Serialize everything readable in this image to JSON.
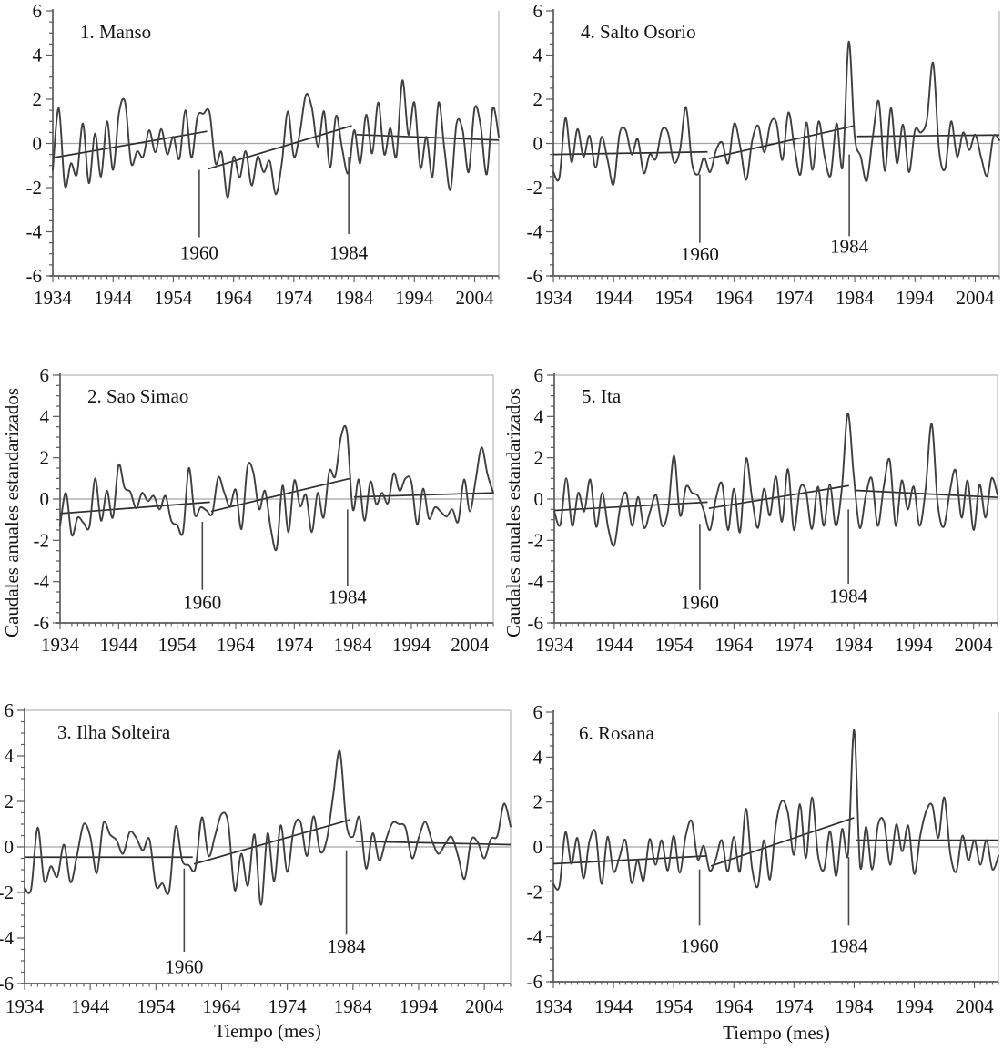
{
  "figure": {
    "xlabel": "Tiempo (mes)",
    "ylabel": "Caudales anuales estandarizados",
    "x_tick_labels": [
      "1934",
      "1944",
      "1954",
      "1964",
      "1974",
      "1984",
      "1994",
      "2004"
    ],
    "y_tick_labels": [
      "6",
      "4",
      "2",
      "0",
      "-2",
      "-4",
      "-6"
    ],
    "x_range": [
      1934,
      2008
    ],
    "y_range": [
      -6,
      6
    ],
    "x_major_step": 10,
    "x_minor_step": 1,
    "y_major_step": 2,
    "y_minor_step": 0.5,
    "colors": {
      "series": "#3f3f3f",
      "trend": "#2e2e2e",
      "marker": "#4a4a4a",
      "axis": "#595959",
      "zero_line": "#a3a3a3",
      "frame": "#c2c2c2",
      "text": "#141414",
      "background": "#ffffff"
    }
  },
  "chart_data": [
    {
      "type": "line",
      "title": "1. Manso",
      "x_start": 1934,
      "x_step": 1,
      "values": [
        -1.2,
        1.6,
        -1.9,
        -0.9,
        -1.4,
        0.9,
        -1.8,
        0.45,
        -1.5,
        1.0,
        -1.2,
        1.4,
        1.85,
        -0.9,
        -0.35,
        -0.6,
        0.6,
        -0.4,
        0.65,
        -0.5,
        0.3,
        -0.7,
        1.5,
        -0.65,
        1.2,
        1.35,
        1.4,
        -0.9,
        -0.4,
        -2.45,
        -0.6,
        -1.55,
        -0.35,
        -1.9,
        -0.6,
        -1.3,
        -0.8,
        -2.3,
        -0.9,
        1.45,
        -0.6,
        0.5,
        2.2,
        1.6,
        -0.15,
        1.45,
        -1.1,
        1.25,
        -0.2,
        -1.35,
        0.6,
        -0.9,
        1.3,
        -0.45,
        1.85,
        -0.5,
        0.7,
        -0.6,
        2.85,
        0.4,
        1.85,
        -1.1,
        0.3,
        -1.5,
        1.85,
        -0.3,
        -2.1,
        0.9,
        0.6,
        -1.3,
        1.6,
        0.8,
        -1.4,
        1.6,
        0.3
      ],
      "trend_segments": [
        {
          "x1": 1934,
          "y1": -0.65,
          "x2": 1959.6,
          "y2": 0.55
        },
        {
          "x1": 1959.8,
          "y1": -1.15,
          "x2": 1983.6,
          "y2": 0.8
        },
        {
          "x1": 1984.4,
          "y1": 0.4,
          "x2": 2008,
          "y2": 0.15
        }
      ],
      "breakpoints": [
        {
          "label": "1960",
          "x": 1958.3,
          "y_top": -1.2,
          "y_bottom": -4.25,
          "label_y": -4.95
        },
        {
          "label": "1984",
          "x": 1983.1,
          "y_top": -0.6,
          "y_bottom": -4.1,
          "label_y": -4.95
        }
      ]
    },
    {
      "type": "line",
      "title": "2. Sao Simao",
      "x_start": 1934,
      "x_step": 1,
      "values": [
        -1.3,
        0.3,
        -1.75,
        -0.9,
        -1.15,
        -1.35,
        1.0,
        -1.05,
        0.4,
        -0.9,
        1.65,
        0.55,
        0.35,
        -0.45,
        0.3,
        -0.1,
        0.15,
        -0.5,
        0.15,
        -1.05,
        -1.25,
        -1.6,
        1.5,
        -0.75,
        -0.4,
        -0.55,
        -0.7,
        1.05,
        0.35,
        -0.35,
        0.45,
        -1.45,
        1.55,
        1.3,
        -0.5,
        0.4,
        -1.45,
        -2.4,
        0.65,
        -1.6,
        0.9,
        -0.35,
        0.2,
        -1.6,
        0.3,
        -0.9,
        1.35,
        1.1,
        3.05,
        3.25,
        -0.5,
        0.95,
        -1.05,
        0.85,
        -0.25,
        0.3,
        -0.2,
        1.25,
        0.4,
        1.0,
        0.85,
        -1.25,
        0.5,
        -0.95,
        -0.4,
        -0.6,
        -0.85,
        -0.5,
        -1.1,
        0.95,
        -0.6,
        0.95,
        2.5,
        1.2,
        0.3
      ],
      "trend_segments": [
        {
          "x1": 1934,
          "y1": -0.7,
          "x2": 1959.6,
          "y2": -0.15
        },
        {
          "x1": 1959.8,
          "y1": -0.6,
          "x2": 1983.6,
          "y2": 1.0
        },
        {
          "x1": 1984.2,
          "y1": 0.1,
          "x2": 2008,
          "y2": 0.3
        }
      ],
      "breakpoints": [
        {
          "label": "1960",
          "x": 1958.3,
          "y_top": -1.1,
          "y_bottom": -4.4,
          "label_y": -5.0
        },
        {
          "label": "1984",
          "x": 1983.1,
          "y_top": -0.5,
          "y_bottom": -4.2,
          "label_y": -4.75
        }
      ]
    },
    {
      "type": "line",
      "title": "3. Ilha Solteira",
      "x_start": 1934,
      "x_step": 1,
      "values": [
        -1.8,
        -1.85,
        0.85,
        -1.5,
        -0.85,
        -1.3,
        0.1,
        -1.55,
        -0.35,
        1.0,
        0.45,
        -1.15,
        1.05,
        0.55,
        0.3,
        -0.3,
        0.65,
        0.4,
        -0.15,
        0.35,
        -1.7,
        -1.6,
        -1.95,
        0.9,
        -0.6,
        -0.8,
        -0.95,
        1.3,
        -0.4,
        0.5,
        1.45,
        1.05,
        -1.9,
        -0.3,
        -1.7,
        0.55,
        -2.55,
        0.6,
        -1.5,
        0.95,
        -1.1,
        0.85,
        1.1,
        -0.4,
        1.35,
        -0.2,
        0.3,
        2.3,
        4.2,
        1.0,
        0.45,
        1.3,
        -0.95,
        0.6,
        -0.6,
        0.3,
        1.05,
        1.0,
        0.85,
        -0.5,
        0.4,
        1.1,
        0.3,
        -0.3,
        0.1,
        0.45,
        -0.4,
        -1.4,
        0.3,
        0.2,
        -0.5,
        0.35,
        0.5,
        1.9,
        0.9
      ],
      "trend_segments": [
        {
          "x1": 1934,
          "y1": -0.45,
          "x2": 1959.6,
          "y2": -0.45
        },
        {
          "x1": 1959.8,
          "y1": -0.75,
          "x2": 1983.6,
          "y2": 1.2
        },
        {
          "x1": 1984.4,
          "y1": 0.25,
          "x2": 2008,
          "y2": 0.1
        }
      ],
      "breakpoints": [
        {
          "label": "1960",
          "x": 1958.3,
          "y_top": -0.95,
          "y_bottom": -4.6,
          "label_y": -5.25
        },
        {
          "label": "1984",
          "x": 1983.0,
          "y_top": -0.15,
          "y_bottom": -3.85,
          "label_y": -4.35
        }
      ]
    },
    {
      "type": "line",
      "title": "4. Salto Osorio",
      "x_start": 1934,
      "x_step": 1,
      "values": [
        -1.3,
        -1.55,
        1.15,
        -0.85,
        0.65,
        -0.6,
        0.35,
        -1.1,
        0.3,
        -0.75,
        -1.85,
        0.45,
        0.6,
        -0.5,
        0.2,
        -1.35,
        -0.5,
        -0.7,
        0.6,
        0.5,
        -0.85,
        -0.3,
        1.65,
        -0.9,
        -1.4,
        -0.65,
        -1.3,
        -0.3,
        0.05,
        -0.9,
        0.9,
        -0.15,
        -1.65,
        0.15,
        0.8,
        -0.4,
        0.9,
        0.95,
        -0.75,
        1.4,
        -0.2,
        -1.4,
        0.95,
        -1.2,
        1.0,
        -0.6,
        -1.45,
        0.9,
        -1.05,
        4.6,
        0.3,
        -0.6,
        -1.7,
        0.3,
        1.9,
        -1.25,
        1.6,
        -0.9,
        0.85,
        -1.3,
        0.6,
        0.5,
        1.1,
        3.65,
        -0.3,
        -1.15,
        1.0,
        -0.6,
        0.5,
        -0.3,
        0.4,
        -0.65,
        -1.45,
        0.3,
        0.15
      ],
      "trend_segments": [
        {
          "x1": 1934,
          "y1": -0.5,
          "x2": 1959.6,
          "y2": -0.38
        },
        {
          "x1": 1959.8,
          "y1": -0.68,
          "x2": 1984.0,
          "y2": 0.8
        },
        {
          "x1": 1984.4,
          "y1": 0.32,
          "x2": 2008,
          "y2": 0.38
        }
      ],
      "breakpoints": [
        {
          "label": "1960",
          "x": 1958.3,
          "y_top": -1.4,
          "y_bottom": -4.5,
          "label_y": -5.0
        },
        {
          "label": "1984",
          "x": 1983.1,
          "y_top": -0.5,
          "y_bottom": -4.2,
          "label_y": -4.65
        }
      ]
    },
    {
      "type": "line",
      "title": "5. Ita",
      "x_start": 1934,
      "x_step": 1,
      "values": [
        -0.6,
        -1.25,
        1.0,
        -1.3,
        0.3,
        -0.6,
        0.95,
        -1.35,
        0.3,
        -1.4,
        -2.25,
        -0.4,
        0.3,
        -1.3,
        0.1,
        -1.4,
        -0.6,
        0.2,
        -1.3,
        -0.55,
        2.1,
        -0.8,
        0.6,
        0.3,
        0.15,
        -0.6,
        -1.5,
        0.05,
        0.75,
        -1.5,
        0.5,
        -1.6,
        1.95,
        0.05,
        -1.4,
        0.5,
        -0.8,
        1.1,
        -1.1,
        1.45,
        -1.5,
        0.5,
        0.4,
        -1.45,
        0.6,
        -1.3,
        0.7,
        -1.3,
        0.5,
        4.15,
        1.1,
        -1.4,
        0.15,
        1.0,
        -1.3,
        0.6,
        1.9,
        -1.3,
        0.9,
        -0.5,
        0.6,
        -1.3,
        0.5,
        3.65,
        -0.2,
        -1.35,
        0.3,
        1.4,
        -0.9,
        0.9,
        -1.5,
        0.7,
        -0.9,
        1.0,
        0.2
      ],
      "trend_segments": [
        {
          "x1": 1934,
          "y1": -0.55,
          "x2": 1959.6,
          "y2": -0.15
        },
        {
          "x1": 1959.8,
          "y1": -0.45,
          "x2": 1983.2,
          "y2": 0.65
        },
        {
          "x1": 1984.4,
          "y1": 0.42,
          "x2": 2008,
          "y2": 0.08
        }
      ],
      "breakpoints": [
        {
          "label": "1960",
          "x": 1958.3,
          "y_top": -1.2,
          "y_bottom": -4.4,
          "label_y": -5.0
        },
        {
          "label": "1984",
          "x": 1983.1,
          "y_top": -0.5,
          "y_bottom": -4.1,
          "label_y": -4.7
        }
      ]
    },
    {
      "type": "line",
      "title": "6. Rosana",
      "x_start": 1934,
      "x_step": 1,
      "values": [
        -1.65,
        -1.75,
        0.65,
        -0.75,
        0.4,
        -1.4,
        0.25,
        0.65,
        -1.65,
        0.45,
        -1.1,
        -0.45,
        0.3,
        -1.6,
        -0.6,
        -1.5,
        0.35,
        -0.8,
        0.3,
        -1.05,
        0.5,
        -1.15,
        0.5,
        1.15,
        -0.55,
        0.05,
        -1.05,
        -0.55,
        0.3,
        -1.1,
        0.45,
        -1.1,
        1.7,
        -0.9,
        -1.75,
        0.3,
        -1.45,
        1.0,
        2.05,
        1.5,
        -0.35,
        1.9,
        -0.5,
        2.2,
        -0.4,
        -1.0,
        0.7,
        -1.3,
        0.8,
        -0.3,
        5.2,
        -0.85,
        0.9,
        -1.0,
        1.0,
        1.1,
        -0.8,
        1.0,
        -0.2,
        0.95,
        -1.2,
        0.5,
        1.6,
        1.85,
        0.4,
        2.2,
        -0.3,
        -1.1,
        0.5,
        -0.6,
        0.3,
        -0.8,
        0.3,
        -1.0,
        -0.4
      ],
      "trend_segments": [
        {
          "x1": 1934,
          "y1": -0.75,
          "x2": 1959.6,
          "y2": -0.4
        },
        {
          "x1": 1960.2,
          "y1": -0.85,
          "x2": 1984.0,
          "y2": 1.3
        },
        {
          "x1": 1984.3,
          "y1": 0.3,
          "x2": 2008,
          "y2": 0.3
        }
      ],
      "breakpoints": [
        {
          "label": "1960",
          "x": 1958.3,
          "y_top": -1.0,
          "y_bottom": -3.5,
          "label_y": -4.4
        },
        {
          "label": "1984",
          "x": 1983.1,
          "y_top": -0.45,
          "y_bottom": -3.5,
          "label_y": -4.4
        }
      ]
    }
  ]
}
